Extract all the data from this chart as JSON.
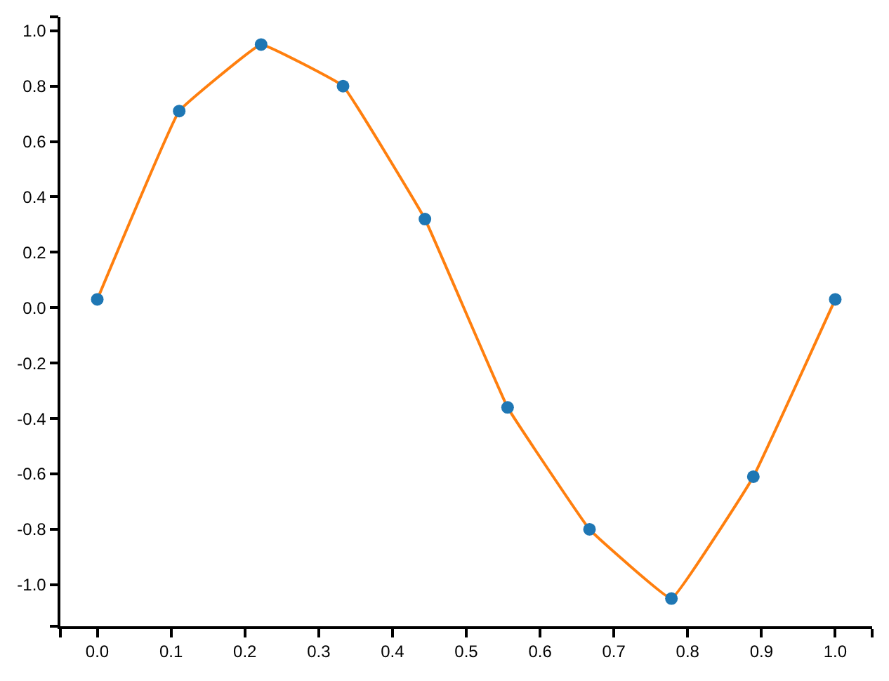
{
  "chart_data": {
    "type": "line",
    "x": [
      0,
      0.111,
      0.222,
      0.333,
      0.444,
      0.556,
      0.667,
      0.778,
      0.889,
      1.0
    ],
    "series": [
      {
        "color": "#ff7f0e",
        "values": [
          0.03,
          0.71,
          0.95,
          0.8,
          0.32,
          -0.36,
          -0.8,
          -1.05,
          -0.61,
          0.03
        ]
      },
      {
        "type": "scatter",
        "color": "#1f77b4",
        "marker": "circle",
        "values": [
          0.03,
          0.71,
          0.95,
          0.8,
          0.32,
          -0.36,
          -0.8,
          -1.05,
          -0.61,
          0.03
        ]
      }
    ],
    "xlim": [
      -0.05,
      1.05
    ],
    "ylim": [
      -1.15,
      1.05
    ],
    "xticks": [
      {
        "value": -0.05,
        "label": null
      },
      {
        "value": 0,
        "label": "0.0"
      },
      0.1,
      0.2,
      0.3,
      0.4,
      0.5,
      0.6,
      0.7,
      0.8,
      0.9,
      {
        "value": 1,
        "label": "1.0"
      },
      {
        "value": 1.05,
        "label": null
      }
    ],
    "yticks": [
      {
        "value": -1.15,
        "label": null
      },
      {
        "value": -1,
        "label": "-1.0"
      },
      -0.8,
      -0.6,
      -0.4,
      -0.2,
      {
        "value": 0,
        "label": "0.0"
      },
      0.2,
      0.4,
      0.6,
      0.8,
      {
        "value": 1,
        "label": "1.0"
      },
      {
        "value": 1.05,
        "label": null
      }
    ]
  }
}
